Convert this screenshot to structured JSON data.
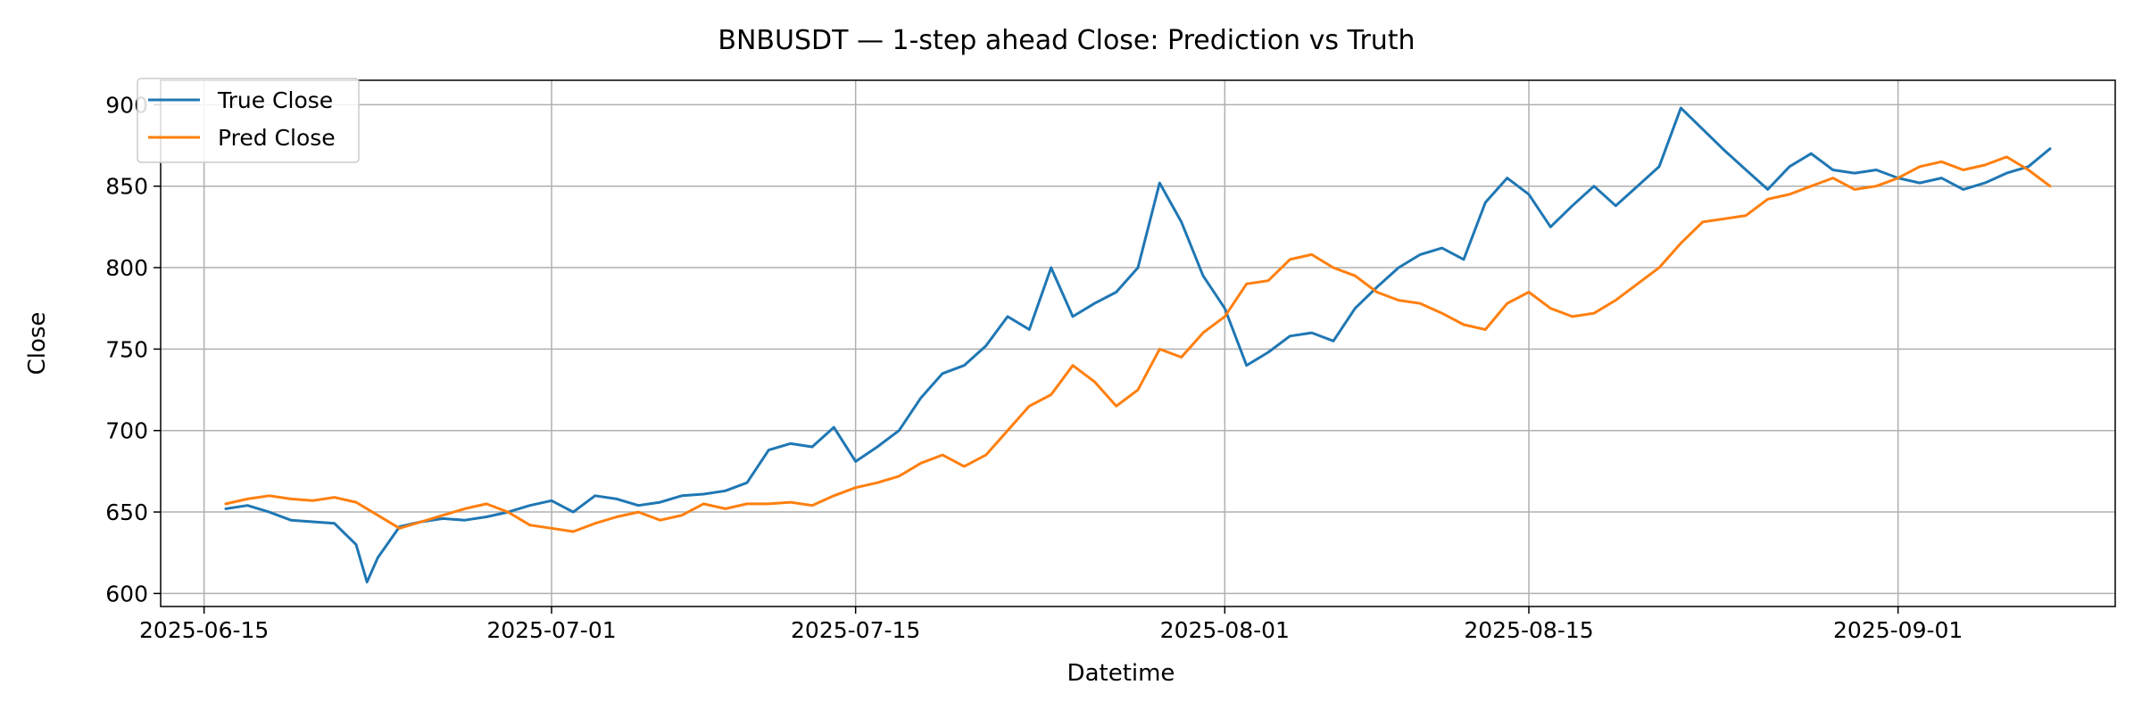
{
  "chart_data": {
    "type": "line",
    "title": "BNBUSDT — 1-step ahead Close: Prediction vs Truth",
    "xlabel": "Datetime",
    "ylabel": "Close",
    "x_ticks": [
      "2025-06-15",
      "2025-07-01",
      "2025-07-15",
      "2025-08-01",
      "2025-08-15",
      "2025-09-01"
    ],
    "y_ticks": [
      600,
      650,
      700,
      750,
      800,
      850,
      900
    ],
    "xlim": [
      "2025-06-13",
      "2025-09-11"
    ],
    "ylim": [
      592,
      915
    ],
    "grid": true,
    "legend_position": "top-left",
    "series": [
      {
        "name": "True Close",
        "color": "#1f77b4",
        "points": [
          [
            "2025-06-16",
            652
          ],
          [
            "2025-06-17",
            654
          ],
          [
            "2025-06-18",
            650
          ],
          [
            "2025-06-19",
            645
          ],
          [
            "2025-06-20",
            644
          ],
          [
            "2025-06-21",
            643
          ],
          [
            "2025-06-22",
            630
          ],
          [
            "2025-06-22 12:00",
            607
          ],
          [
            "2025-06-23",
            622
          ],
          [
            "2025-06-24",
            641
          ],
          [
            "2025-06-25",
            644
          ],
          [
            "2025-06-26",
            646
          ],
          [
            "2025-06-27",
            645
          ],
          [
            "2025-06-28",
            647
          ],
          [
            "2025-06-29",
            650
          ],
          [
            "2025-06-30",
            654
          ],
          [
            "2025-07-01",
            657
          ],
          [
            "2025-07-02",
            650
          ],
          [
            "2025-07-03",
            660
          ],
          [
            "2025-07-04",
            658
          ],
          [
            "2025-07-05",
            654
          ],
          [
            "2025-07-06",
            656
          ],
          [
            "2025-07-07",
            660
          ],
          [
            "2025-07-08",
            661
          ],
          [
            "2025-07-09",
            663
          ],
          [
            "2025-07-10",
            668
          ],
          [
            "2025-07-11",
            688
          ],
          [
            "2025-07-12",
            692
          ],
          [
            "2025-07-13",
            690
          ],
          [
            "2025-07-14",
            702
          ],
          [
            "2025-07-15",
            681
          ],
          [
            "2025-07-16",
            690
          ],
          [
            "2025-07-17",
            700
          ],
          [
            "2025-07-18",
            720
          ],
          [
            "2025-07-19",
            735
          ],
          [
            "2025-07-20",
            740
          ],
          [
            "2025-07-21",
            752
          ],
          [
            "2025-07-22",
            770
          ],
          [
            "2025-07-23",
            762
          ],
          [
            "2025-07-24",
            800
          ],
          [
            "2025-07-25",
            770
          ],
          [
            "2025-07-26",
            778
          ],
          [
            "2025-07-27",
            785
          ],
          [
            "2025-07-28",
            800
          ],
          [
            "2025-07-29",
            852
          ],
          [
            "2025-07-30",
            828
          ],
          [
            "2025-07-31",
            795
          ],
          [
            "2025-08-01",
            775
          ],
          [
            "2025-08-02",
            740
          ],
          [
            "2025-08-03",
            748
          ],
          [
            "2025-08-04",
            758
          ],
          [
            "2025-08-05",
            760
          ],
          [
            "2025-08-06",
            755
          ],
          [
            "2025-08-07",
            775
          ],
          [
            "2025-08-08",
            788
          ],
          [
            "2025-08-09",
            800
          ],
          [
            "2025-08-10",
            808
          ],
          [
            "2025-08-11",
            812
          ],
          [
            "2025-08-12",
            805
          ],
          [
            "2025-08-13",
            840
          ],
          [
            "2025-08-14",
            855
          ],
          [
            "2025-08-15",
            845
          ],
          [
            "2025-08-16",
            825
          ],
          [
            "2025-08-17",
            838
          ],
          [
            "2025-08-18",
            850
          ],
          [
            "2025-08-19",
            838
          ],
          [
            "2025-08-20",
            850
          ],
          [
            "2025-08-21",
            862
          ],
          [
            "2025-08-22",
            898
          ],
          [
            "2025-08-23",
            885
          ],
          [
            "2025-08-24",
            872
          ],
          [
            "2025-08-25",
            860
          ],
          [
            "2025-08-26",
            848
          ],
          [
            "2025-08-27",
            862
          ],
          [
            "2025-08-28",
            870
          ],
          [
            "2025-08-29",
            860
          ],
          [
            "2025-08-30",
            858
          ],
          [
            "2025-08-31",
            860
          ],
          [
            "2025-09-01",
            855
          ],
          [
            "2025-09-02",
            852
          ],
          [
            "2025-09-03",
            855
          ],
          [
            "2025-09-04",
            848
          ],
          [
            "2025-09-05",
            852
          ],
          [
            "2025-09-06",
            858
          ],
          [
            "2025-09-07",
            862
          ],
          [
            "2025-09-08",
            873
          ]
        ]
      },
      {
        "name": "Pred Close",
        "color": "#ff7f0e",
        "points": [
          [
            "2025-06-16",
            655
          ],
          [
            "2025-06-17",
            658
          ],
          [
            "2025-06-18",
            660
          ],
          [
            "2025-06-19",
            658
          ],
          [
            "2025-06-20",
            657
          ],
          [
            "2025-06-21",
            659
          ],
          [
            "2025-06-22",
            656
          ],
          [
            "2025-06-23",
            648
          ],
          [
            "2025-06-24",
            640
          ],
          [
            "2025-06-25",
            644
          ],
          [
            "2025-06-26",
            648
          ],
          [
            "2025-06-27",
            652
          ],
          [
            "2025-06-28",
            655
          ],
          [
            "2025-06-29",
            650
          ],
          [
            "2025-06-30",
            642
          ],
          [
            "2025-07-01",
            640
          ],
          [
            "2025-07-02",
            638
          ],
          [
            "2025-07-03",
            643
          ],
          [
            "2025-07-04",
            647
          ],
          [
            "2025-07-05",
            650
          ],
          [
            "2025-07-06",
            645
          ],
          [
            "2025-07-07",
            648
          ],
          [
            "2025-07-08",
            655
          ],
          [
            "2025-07-09",
            652
          ],
          [
            "2025-07-10",
            655
          ],
          [
            "2025-07-11",
            655
          ],
          [
            "2025-07-12",
            656
          ],
          [
            "2025-07-13",
            654
          ],
          [
            "2025-07-14",
            660
          ],
          [
            "2025-07-15",
            665
          ],
          [
            "2025-07-16",
            668
          ],
          [
            "2025-07-17",
            672
          ],
          [
            "2025-07-18",
            680
          ],
          [
            "2025-07-19",
            685
          ],
          [
            "2025-07-20",
            678
          ],
          [
            "2025-07-21",
            685
          ],
          [
            "2025-07-22",
            700
          ],
          [
            "2025-07-23",
            715
          ],
          [
            "2025-07-24",
            722
          ],
          [
            "2025-07-25",
            740
          ],
          [
            "2025-07-26",
            730
          ],
          [
            "2025-07-27",
            715
          ],
          [
            "2025-07-28",
            725
          ],
          [
            "2025-07-29",
            750
          ],
          [
            "2025-07-30",
            745
          ],
          [
            "2025-07-31",
            760
          ],
          [
            "2025-08-01",
            770
          ],
          [
            "2025-08-02",
            790
          ],
          [
            "2025-08-03",
            792
          ],
          [
            "2025-08-04",
            805
          ],
          [
            "2025-08-05",
            808
          ],
          [
            "2025-08-06",
            800
          ],
          [
            "2025-08-07",
            795
          ],
          [
            "2025-08-08",
            785
          ],
          [
            "2025-08-09",
            780
          ],
          [
            "2025-08-10",
            778
          ],
          [
            "2025-08-11",
            772
          ],
          [
            "2025-08-12",
            765
          ],
          [
            "2025-08-13",
            762
          ],
          [
            "2025-08-14",
            778
          ],
          [
            "2025-08-15",
            785
          ],
          [
            "2025-08-16",
            775
          ],
          [
            "2025-08-17",
            770
          ],
          [
            "2025-08-18",
            772
          ],
          [
            "2025-08-19",
            780
          ],
          [
            "2025-08-20",
            790
          ],
          [
            "2025-08-21",
            800
          ],
          [
            "2025-08-22",
            815
          ],
          [
            "2025-08-23",
            828
          ],
          [
            "2025-08-24",
            830
          ],
          [
            "2025-08-25",
            832
          ],
          [
            "2025-08-26",
            842
          ],
          [
            "2025-08-27",
            845
          ],
          [
            "2025-08-28",
            850
          ],
          [
            "2025-08-29",
            855
          ],
          [
            "2025-08-30",
            848
          ],
          [
            "2025-08-31",
            850
          ],
          [
            "2025-09-01",
            855
          ],
          [
            "2025-09-02",
            862
          ],
          [
            "2025-09-03",
            865
          ],
          [
            "2025-09-04",
            860
          ],
          [
            "2025-09-05",
            863
          ],
          [
            "2025-09-06",
            868
          ],
          [
            "2025-09-07",
            860
          ],
          [
            "2025-09-08",
            850
          ]
        ]
      }
    ]
  }
}
